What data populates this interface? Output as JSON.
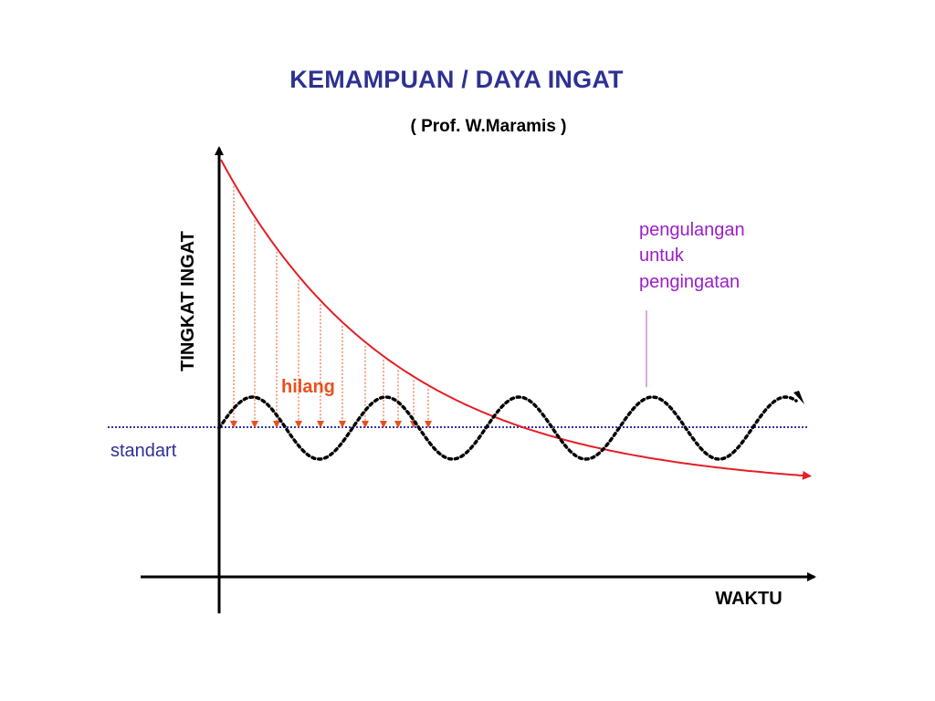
{
  "title": "KEMAMPUAN / DAYA INGAT",
  "subtitle": "( Prof. W.Maramis )",
  "axes": {
    "y_label": "TINGKAT INGAT",
    "x_label": "WAKTU"
  },
  "labels": {
    "standard": "standart",
    "lost": "hilang",
    "repetition": [
      "pengulangan",
      "untuk",
      "pengingatan"
    ]
  },
  "colors": {
    "title": "#2e3192",
    "forgetting_curve": "#e31e24",
    "repetition_wave": "#000000",
    "standard_line": "#3333aa",
    "standard_label": "#2e3192",
    "lost_label": "#e8501c",
    "drop_arrows": "#e8501c",
    "repetition_label": "#9b1fc8",
    "axis": "#000000"
  }
}
